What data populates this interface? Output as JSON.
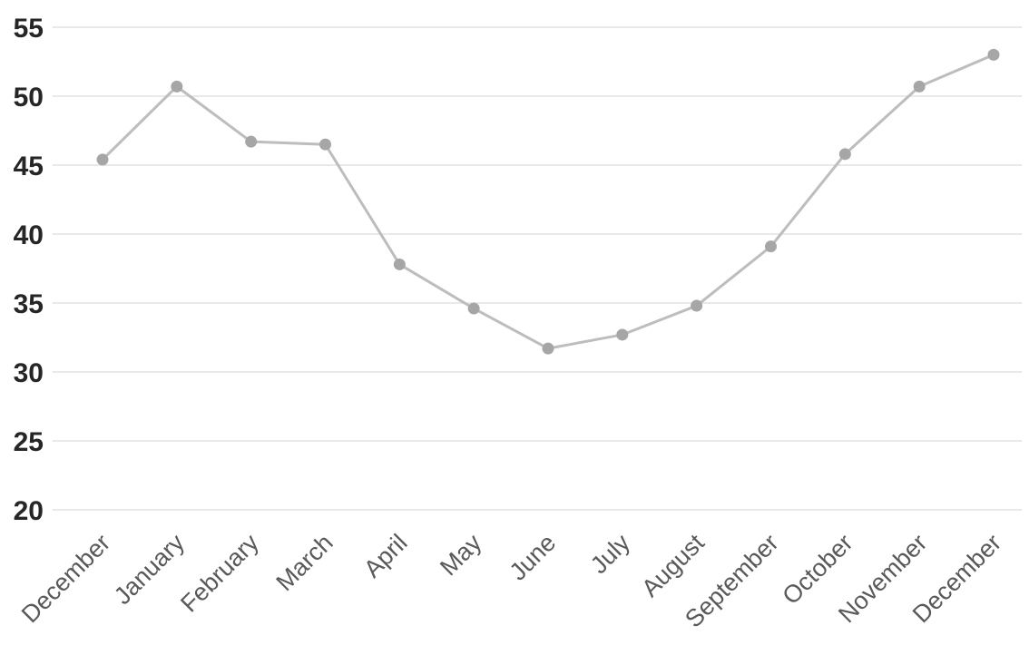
{
  "chart_data": {
    "type": "line",
    "title": "",
    "xlabel": "",
    "ylabel": "",
    "categories": [
      "December",
      "January",
      "February",
      "March",
      "April",
      "May",
      "June",
      "July",
      "August",
      "September",
      "October",
      "November",
      "December"
    ],
    "values": [
      45.4,
      50.7,
      46.7,
      46.5,
      37.8,
      34.6,
      31.7,
      32.7,
      34.8,
      39.1,
      45.8,
      50.7,
      53.0
    ],
    "ylim": [
      20,
      55
    ],
    "yticks": [
      20,
      25,
      30,
      35,
      40,
      45,
      50,
      55
    ],
    "grid": "horizontal-only",
    "legend": "none",
    "x_label_rotation_deg": 45,
    "marker": "circle",
    "colors": {
      "line": "#bdbdbd",
      "marker": "#a6a6a6",
      "gridline": "#e2e2e2",
      "ytick_label": "#262626",
      "xtick_label": "#595959",
      "background": "#ffffff"
    }
  }
}
